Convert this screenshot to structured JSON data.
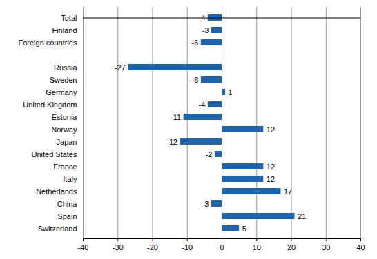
{
  "chart_data": {
    "type": "bar",
    "orientation": "horizontal",
    "categories": [
      "Total",
      "Finland",
      "Foreign countries",
      null,
      "Russia",
      "Sweden",
      "Germany",
      "United Kingdom",
      "Estonia",
      "Norway",
      "Japan",
      "United States",
      "France",
      "Italy",
      "Netherlands",
      "China",
      "Spain",
      "Switzerland"
    ],
    "values": [
      -4,
      -3,
      -6,
      null,
      -27,
      -6,
      1,
      -4,
      -11,
      12,
      -12,
      -2,
      12,
      12,
      17,
      -3,
      21,
      5
    ],
    "color": "#1f63ab",
    "xlim": [
      -40,
      40
    ],
    "xticks": [
      -40,
      -30,
      -20,
      -10,
      0,
      10,
      20,
      30,
      40
    ],
    "grid": true,
    "data_labels": true
  }
}
